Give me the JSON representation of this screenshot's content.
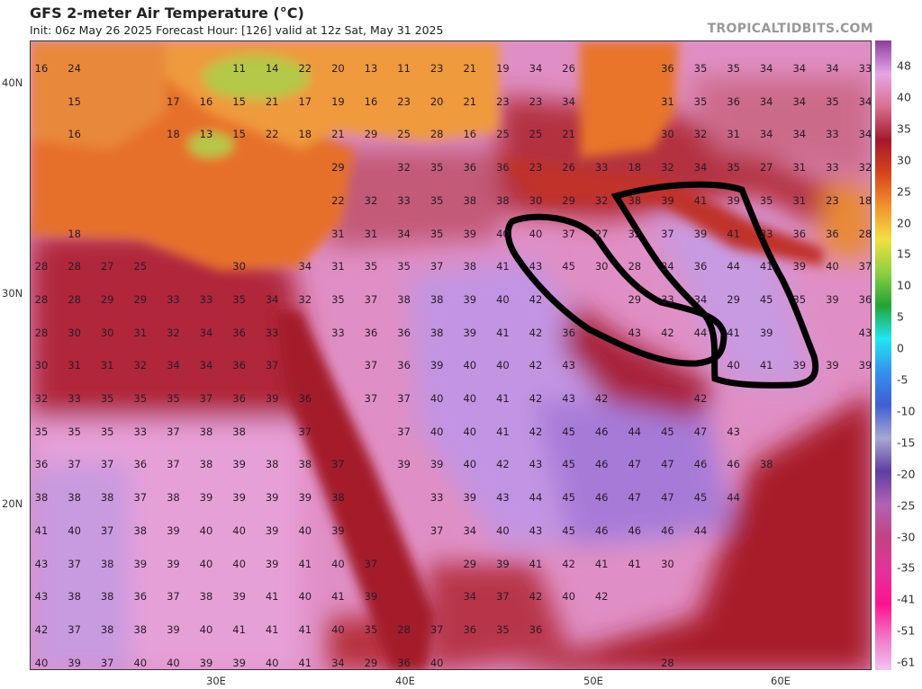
{
  "header": {
    "title": "GFS 2-meter Air Temperature (°C)",
    "subtitle": "Init: 06z May 26 2025   Forecast Hour: [126]   valid at 12z Sat, May 31 2025",
    "brand": "TROPICALTIDBITS.COM"
  },
  "axes": {
    "latitudes": [
      "40N",
      "30N",
      "20N"
    ],
    "longitudes": [
      "30E",
      "40E",
      "50E",
      "60E"
    ]
  },
  "colorbar": {
    "labels": [
      "48",
      "40",
      "35",
      "30",
      "25",
      "20",
      "15",
      "10",
      "5",
      "0",
      "-5",
      "-10",
      "-15",
      "-20",
      "-25",
      "-30",
      "-35",
      "-41",
      "-51",
      "-61"
    ],
    "colors": [
      "#8a3f9a",
      "#e6a6e6",
      "#d9708f",
      "#a3182b",
      "#d8441c",
      "#f0922e",
      "#f2e042",
      "#8fd040",
      "#22a436",
      "#22e6f2",
      "#3392f0",
      "#3f5fd2",
      "#a8a6d2",
      "#5e3ea2",
      "#b262b4",
      "#c44283",
      "#e3329a",
      "#ff1290",
      "#f274c4",
      "#f2c4f2"
    ]
  },
  "annotation": {
    "outline_color": "#000000"
  },
  "temperatures": [
    [
      16,
      24,
      null,
      null,
      null,
      null,
      11,
      14,
      22,
      20,
      13,
      11,
      23,
      21,
      19,
      34,
      26,
      null,
      null,
      36,
      35,
      35,
      34,
      34,
      34,
      33
    ],
    [
      null,
      15,
      null,
      null,
      17,
      16,
      15,
      21,
      17,
      19,
      16,
      23,
      20,
      21,
      23,
      23,
      34,
      null,
      null,
      31,
      35,
      36,
      34,
      34,
      35,
      34
    ],
    [
      null,
      16,
      null,
      null,
      18,
      13,
      15,
      22,
      18,
      21,
      29,
      25,
      28,
      16,
      25,
      25,
      21,
      null,
      null,
      30,
      32,
      31,
      34,
      34,
      33,
      34
    ],
    [
      null,
      null,
      null,
      null,
      null,
      null,
      null,
      null,
      null,
      29,
      null,
      32,
      35,
      36,
      36,
      23,
      26,
      33,
      18,
      32,
      34,
      35,
      27,
      31,
      33,
      32
    ],
    [
      null,
      null,
      null,
      null,
      null,
      null,
      null,
      null,
      null,
      22,
      32,
      33,
      35,
      38,
      38,
      30,
      29,
      32,
      38,
      39,
      41,
      39,
      35,
      31,
      23,
      18
    ],
    [
      null,
      18,
      null,
      null,
      null,
      null,
      null,
      null,
      null,
      31,
      31,
      34,
      35,
      39,
      40,
      40,
      37,
      27,
      32,
      37,
      39,
      41,
      33,
      36,
      36,
      28
    ],
    [
      28,
      28,
      27,
      25,
      null,
      null,
      30,
      null,
      34,
      31,
      35,
      35,
      37,
      38,
      41,
      43,
      45,
      30,
      28,
      34,
      36,
      44,
      41,
      39,
      40,
      37
    ],
    [
      28,
      28,
      29,
      29,
      33,
      33,
      35,
      34,
      32,
      35,
      37,
      38,
      38,
      39,
      40,
      42,
      null,
      null,
      29,
      33,
      34,
      29,
      45,
      35,
      39,
      36
    ],
    [
      28,
      30,
      30,
      31,
      32,
      34,
      36,
      33,
      null,
      33,
      36,
      36,
      38,
      39,
      41,
      42,
      36,
      null,
      43,
      42,
      44,
      41,
      39,
      null,
      null,
      43
    ],
    [
      30,
      31,
      31,
      32,
      34,
      34,
      36,
      37,
      null,
      null,
      37,
      36,
      39,
      40,
      40,
      42,
      43,
      null,
      null,
      null,
      null,
      40,
      41,
      39,
      39,
      39
    ],
    [
      32,
      33,
      35,
      35,
      35,
      37,
      36,
      39,
      36,
      null,
      37,
      37,
      40,
      40,
      41,
      42,
      43,
      42,
      null,
      null,
      42
    ],
    [
      35,
      35,
      35,
      33,
      37,
      38,
      38,
      null,
      37,
      null,
      null,
      37,
      40,
      40,
      41,
      42,
      45,
      46,
      44,
      45,
      47,
      43
    ],
    [
      36,
      37,
      37,
      36,
      37,
      38,
      39,
      38,
      38,
      37,
      null,
      39,
      39,
      40,
      42,
      43,
      45,
      46,
      47,
      47,
      46,
      46,
      38
    ],
    [
      38,
      38,
      38,
      37,
      38,
      39,
      39,
      39,
      39,
      38,
      null,
      null,
      33,
      39,
      43,
      44,
      45,
      46,
      47,
      47,
      45,
      44
    ],
    [
      41,
      40,
      37,
      38,
      39,
      40,
      40,
      39,
      40,
      39,
      null,
      null,
      37,
      34,
      40,
      43,
      45,
      46,
      46,
      46,
      44
    ],
    [
      43,
      37,
      38,
      39,
      39,
      40,
      40,
      39,
      41,
      40,
      37,
      null,
      null,
      29,
      39,
      41,
      42,
      41,
      41,
      30
    ],
    [
      43,
      38,
      38,
      36,
      37,
      38,
      39,
      41,
      40,
      41,
      39,
      null,
      null,
      34,
      37,
      42,
      40,
      42
    ],
    [
      42,
      37,
      38,
      38,
      39,
      40,
      41,
      41,
      41,
      40,
      35,
      28,
      37,
      36,
      35,
      36
    ],
    [
      40,
      39,
      37,
      40,
      40,
      39,
      39,
      40,
      41,
      34,
      29,
      36,
      40,
      null,
      null,
      null,
      null,
      null,
      null,
      28
    ]
  ]
}
